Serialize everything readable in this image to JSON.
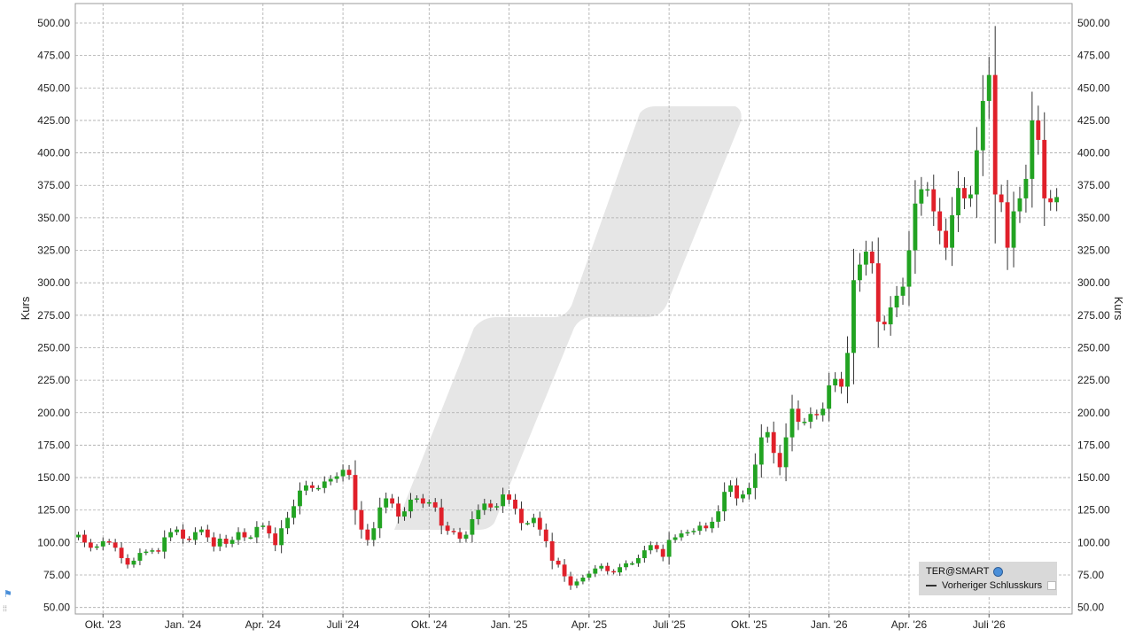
{
  "chart_data": {
    "type": "candlestick",
    "ylabel_left": "Kurs",
    "ylabel_right": "Kurs",
    "ylim": [
      45,
      515
    ],
    "y_ticks": [
      "50.00",
      "75.00",
      "100.00",
      "125.00",
      "150.00",
      "175.00",
      "200.00",
      "225.00",
      "250.00",
      "275.00",
      "300.00",
      "325.00",
      "350.00",
      "375.00",
      "400.00",
      "425.00",
      "450.00",
      "475.00",
      "500.00"
    ],
    "y_tick_values": [
      50,
      75,
      100,
      125,
      150,
      175,
      200,
      225,
      250,
      275,
      300,
      325,
      350,
      375,
      400,
      425,
      450,
      475,
      500
    ],
    "x_ticks": [
      {
        "label": "Okt. '23",
        "week": 4
      },
      {
        "label": "Jan. '24",
        "week": 17
      },
      {
        "label": "Apr. '24",
        "week": 30
      },
      {
        "label": "Juli '24",
        "week": 43
      },
      {
        "label": "Okt. '24",
        "week": 57
      },
      {
        "label": "Jan. '25",
        "week": 70
      },
      {
        "label": "Apr. '25",
        "week": 83
      },
      {
        "label": "Juli '25",
        "week": 96
      },
      {
        "label": "Okt. '25",
        "week": 109
      },
      {
        "label": "Jan. '26",
        "week": 122
      },
      {
        "label": "Apr. '26",
        "week": 135
      },
      {
        "label": "Juli '26",
        "week": 148
      }
    ],
    "x_range_weeks": [
      -0.5,
      161.5
    ],
    "grid": true,
    "colors": {
      "up": "#22a322",
      "down": "#e0202a",
      "wick": "#333333",
      "grid": "#aaaaaa"
    },
    "ohlc_close": [
      106,
      100,
      96,
      97,
      101,
      100,
      96,
      88,
      83,
      86,
      92,
      93,
      94,
      93,
      104,
      108,
      110,
      103,
      102,
      108,
      110,
      104,
      97,
      103,
      99,
      102,
      108,
      104,
      104,
      112,
      113,
      107,
      98,
      111,
      119,
      128,
      140,
      144,
      142,
      142,
      147,
      149,
      151,
      156,
      152,
      125,
      110,
      102,
      111,
      127,
      134,
      130,
      120,
      124,
      133,
      134,
      130,
      131,
      127,
      113,
      109,
      108,
      103,
      106,
      118,
      125,
      130,
      127,
      128,
      137,
      133,
      126,
      115,
      115,
      119,
      110,
      101,
      86,
      83,
      74,
      67,
      70,
      73,
      76,
      80,
      82,
      78,
      77,
      81,
      84,
      84,
      88,
      94,
      98,
      95,
      89,
      102,
      104,
      107,
      108,
      109,
      113,
      111,
      116,
      124,
      139,
      144,
      134,
      137,
      142,
      160,
      181,
      185,
      169,
      158,
      181,
      203,
      193,
      193,
      199,
      198,
      203,
      221,
      226,
      220,
      246,
      302,
      314,
      324,
      315,
      270,
      268,
      281,
      290,
      297,
      325,
      361,
      372,
      372,
      355,
      340,
      327,
      352,
      373,
      365,
      368,
      402,
      440,
      460,
      368,
      362,
      327,
      355,
      365,
      380,
      425,
      410,
      365,
      362,
      366
    ]
  },
  "legend": {
    "symbol": "TER@SMART",
    "previous_close": "Vorheriger Schlusskurs"
  }
}
